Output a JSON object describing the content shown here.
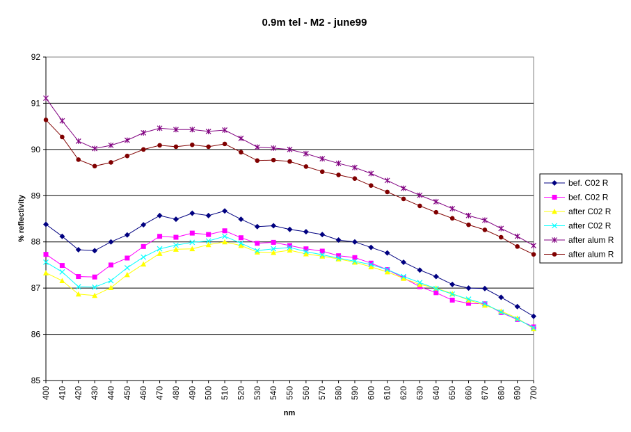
{
  "chart_data": {
    "type": "line",
    "title": "0.9m tel - M2 - june99",
    "xlabel": "nm",
    "ylabel": "% reflectivity",
    "xlim": [
      400,
      700
    ],
    "ylim": [
      85,
      92
    ],
    "yticks": [
      "85",
      "86",
      "87",
      "88",
      "89",
      "90",
      "91",
      "92"
    ],
    "x": [
      400,
      410,
      420,
      430,
      440,
      450,
      460,
      470,
      480,
      490,
      500,
      510,
      520,
      530,
      540,
      550,
      560,
      570,
      580,
      590,
      600,
      610,
      620,
      630,
      640,
      650,
      660,
      670,
      680,
      690,
      700
    ],
    "xtick_labels": [
      "400",
      "410",
      "420",
      "430",
      "440",
      "450",
      "460",
      "470",
      "480",
      "490",
      "500",
      "510",
      "520",
      "530",
      "540",
      "550",
      "560",
      "570",
      "580",
      "590",
      "600",
      "610",
      "620",
      "630",
      "640",
      "650",
      "660",
      "670",
      "680",
      "690",
      "700"
    ],
    "grid": "horizontal",
    "legend_position": "right",
    "series": [
      {
        "name": "bef. C02 R",
        "color": "#000080",
        "marker": "diamond",
        "values": [
          88.38,
          88.12,
          87.83,
          87.81,
          88.0,
          88.15,
          88.37,
          88.57,
          88.49,
          88.62,
          88.57,
          88.67,
          88.49,
          88.33,
          88.35,
          88.27,
          88.22,
          88.16,
          88.04,
          88.0,
          87.88,
          87.76,
          87.56,
          87.39,
          87.25,
          87.08,
          87.0,
          86.99,
          86.8,
          86.6,
          86.39
        ]
      },
      {
        "name": "bef. C02 R",
        "color": "#ff00ff",
        "marker": "square",
        "values": [
          87.73,
          87.49,
          87.25,
          87.24,
          87.5,
          87.65,
          87.9,
          88.12,
          88.1,
          88.19,
          88.16,
          88.24,
          88.09,
          87.97,
          87.99,
          87.92,
          87.85,
          87.8,
          87.7,
          87.66,
          87.54,
          87.4,
          87.22,
          87.03,
          86.9,
          86.74,
          86.67,
          86.66,
          86.47,
          86.32,
          86.16
        ]
      },
      {
        "name": "after C02 R",
        "color": "#ffff00",
        "marker": "triangle",
        "values": [
          87.33,
          87.16,
          86.87,
          86.84,
          87.01,
          87.29,
          87.52,
          87.75,
          87.84,
          87.85,
          87.94,
          88.0,
          87.92,
          87.78,
          87.77,
          87.82,
          87.74,
          87.69,
          87.63,
          87.56,
          87.46,
          87.35,
          87.21,
          87.08,
          87.0,
          86.88,
          86.74,
          86.63,
          86.5,
          86.35,
          86.12
        ]
      },
      {
        "name": "after C02 R",
        "color": "#00ffff",
        "marker": "x",
        "values": [
          87.56,
          87.35,
          87.03,
          87.02,
          87.16,
          87.44,
          87.67,
          87.85,
          87.93,
          87.99,
          88.02,
          88.12,
          87.97,
          87.81,
          87.85,
          87.88,
          87.79,
          87.72,
          87.65,
          87.58,
          87.51,
          87.4,
          87.25,
          87.12,
          86.99,
          86.87,
          86.76,
          86.66,
          86.48,
          86.33,
          86.14
        ]
      },
      {
        "name": "after alum R",
        "color": "#800080",
        "marker": "star",
        "values": [
          91.11,
          90.62,
          90.18,
          90.02,
          90.09,
          90.2,
          90.36,
          90.46,
          90.43,
          90.43,
          90.39,
          90.42,
          90.24,
          90.05,
          90.03,
          90.0,
          89.91,
          89.8,
          89.7,
          89.61,
          89.48,
          89.33,
          89.16,
          89.01,
          88.87,
          88.72,
          88.57,
          88.47,
          88.29,
          88.12,
          87.92
        ]
      },
      {
        "name": "after alum R",
        "color": "#800000",
        "marker": "circle",
        "values": [
          90.64,
          90.27,
          89.78,
          89.64,
          89.72,
          89.86,
          90.0,
          90.09,
          90.06,
          90.1,
          90.06,
          90.12,
          89.94,
          89.76,
          89.77,
          89.74,
          89.63,
          89.52,
          89.45,
          89.37,
          89.22,
          89.08,
          88.93,
          88.78,
          88.64,
          88.51,
          88.37,
          88.26,
          88.1,
          87.9,
          87.73
        ]
      }
    ]
  }
}
